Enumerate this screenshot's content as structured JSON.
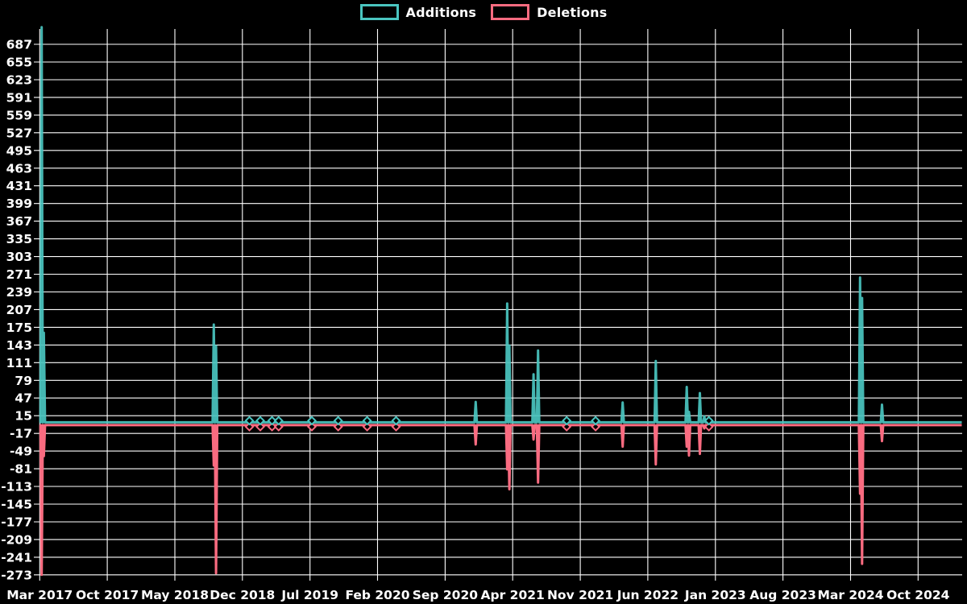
{
  "chart_data": {
    "type": "line",
    "title": "",
    "legend": [
      {
        "label": "Additions",
        "color": "#4AC5C0"
      },
      {
        "label": "Deletions",
        "color": "#F96B80"
      }
    ],
    "style": {
      "background": "#000000",
      "grid_color": "#FFFFFF",
      "text_color": "#FFFFFF"
    },
    "grid": true,
    "legend_position": "top-center",
    "x_axis": {
      "tick_labels": [
        "Mar 2017",
        "Oct 2017",
        "May 2018",
        "Dec 2018",
        "Jul 2019",
        "Feb 2020",
        "Sep 2020",
        "Apr 2021",
        "Nov 2021",
        "Jun 2022",
        "Jan 2023",
        "Aug 2023",
        "Mar 2024",
        "Oct 2024"
      ],
      "tick_interval_months": 7,
      "start": "2017-03-01",
      "end": "2025-02-15"
    },
    "y_axis": {
      "tick_values": [
        687,
        655,
        623,
        591,
        559,
        527,
        495,
        463,
        431,
        399,
        367,
        335,
        303,
        271,
        239,
        207,
        175,
        143,
        111,
        79,
        47,
        15,
        -17,
        -49,
        -81,
        -113,
        -145,
        -177,
        -209,
        -241,
        -273
      ],
      "min": -273,
      "max": 718
    },
    "baseline": {
      "additions": 3,
      "deletions": -2
    },
    "events": [
      {
        "date": "2017-03-07",
        "additions": 718,
        "deletions": -273
      },
      {
        "date": "2017-03-14",
        "additions": 165,
        "deletions": -58
      },
      {
        "date": "2018-09-02",
        "additions": 180,
        "deletions": -75
      },
      {
        "date": "2018-09-09",
        "additions": 141,
        "deletions": -270
      },
      {
        "date": "2018-12-23",
        "additions": 6,
        "deletions": -4,
        "marker": true
      },
      {
        "date": "2019-01-27",
        "additions": 6,
        "deletions": -4,
        "marker": true
      },
      {
        "date": "2019-03-03",
        "additions": 6,
        "deletions": -4,
        "marker": true
      },
      {
        "date": "2019-03-24",
        "additions": 6,
        "deletions": -4,
        "marker": true
      },
      {
        "date": "2019-07-07",
        "additions": 6,
        "deletions": -4,
        "marker": true
      },
      {
        "date": "2019-09-29",
        "additions": 6,
        "deletions": -4,
        "marker": true
      },
      {
        "date": "2019-12-29",
        "additions": 6,
        "deletions": -4,
        "marker": true
      },
      {
        "date": "2020-03-29",
        "additions": 6,
        "deletions": -4,
        "marker": true
      },
      {
        "date": "2020-12-06",
        "additions": 40,
        "deletions": -37
      },
      {
        "date": "2021-03-14",
        "additions": 218,
        "deletions": -82
      },
      {
        "date": "2021-03-21",
        "additions": 142,
        "deletions": -118
      },
      {
        "date": "2021-06-06",
        "additions": 90,
        "deletions": -28
      },
      {
        "date": "2021-06-20",
        "additions": 133,
        "deletions": -106
      },
      {
        "date": "2021-09-19",
        "additions": 6,
        "deletions": -4,
        "marker": true
      },
      {
        "date": "2021-12-19",
        "additions": 6,
        "deletions": -4,
        "marker": true
      },
      {
        "date": "2022-03-13",
        "additions": 39,
        "deletions": -41
      },
      {
        "date": "2022-06-26",
        "additions": 114,
        "deletions": -73
      },
      {
        "date": "2022-10-02",
        "additions": 67,
        "deletions": -41
      },
      {
        "date": "2022-10-09",
        "additions": 22,
        "deletions": -57
      },
      {
        "date": "2022-11-13",
        "additions": 56,
        "deletions": -54
      },
      {
        "date": "2022-11-27",
        "additions": 14,
        "deletions": -8
      },
      {
        "date": "2022-12-11",
        "additions": 6,
        "deletions": -4,
        "marker": true
      },
      {
        "date": "2024-03-31",
        "additions": 265,
        "deletions": -126
      },
      {
        "date": "2024-04-07",
        "additions": 228,
        "deletions": -253
      },
      {
        "date": "2024-06-09",
        "additions": 35,
        "deletions": -31
      }
    ]
  }
}
